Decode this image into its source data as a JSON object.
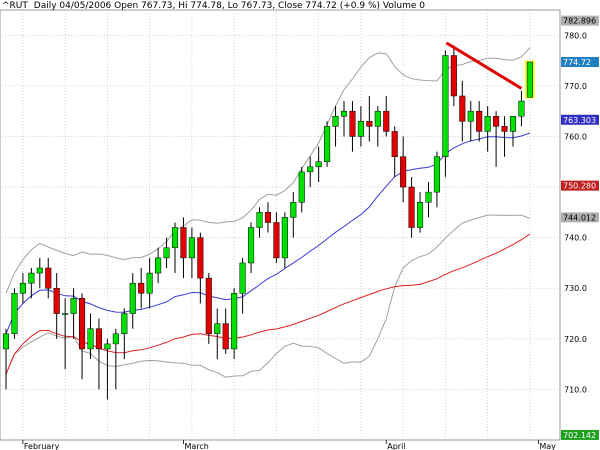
{
  "header": {
    "symbol": "^RUT",
    "info": "Daily 04/05/2006 Open 767.73, Hi 774.78, Lo 767.73, Close 774.72 (+0.9 %) Volume 0"
  },
  "colors": {
    "up": "#00e000",
    "down": "#e00000",
    "ma20": "#3a3ad8",
    "ma50": "#e02020",
    "bands": "#a0a0a0",
    "trendline": "#e00000",
    "highlight": "#ffff00",
    "grid": "#b8b8b8",
    "tag_price": "#2080c0",
    "tag_ma20": "#3030c0",
    "tag_ma50": "#c02020",
    "tag_band": "#b0b0b0",
    "tag_low": "#20a020"
  },
  "chart_data": {
    "type": "candlestick",
    "y_axis": {
      "min": 700,
      "max": 785,
      "ticks": [
        710,
        720,
        730,
        740,
        750,
        760,
        770,
        780
      ],
      "position": "right"
    },
    "x_axis": {
      "labels": [
        {
          "text": "February",
          "index": 2
        },
        {
          "text": "March",
          "index": 21
        },
        {
          "text": "April",
          "index": 45
        },
        {
          "text": "May",
          "index": 63
        }
      ]
    },
    "grid": true,
    "candles": [
      [
        718,
        722,
        710,
        721
      ],
      [
        721,
        730,
        720,
        729
      ],
      [
        729,
        733,
        727,
        731
      ],
      [
        731,
        734,
        728,
        733
      ],
      [
        733,
        736,
        730,
        734
      ],
      [
        734,
        736,
        728,
        730
      ],
      [
        730,
        733,
        720,
        725
      ],
      [
        725,
        728,
        714,
        725
      ],
      [
        725,
        730,
        720,
        728
      ],
      [
        728,
        729,
        712,
        718
      ],
      [
        718,
        725,
        716,
        722
      ],
      [
        722,
        724,
        710,
        718
      ],
      [
        718,
        720,
        708,
        719
      ],
      [
        719,
        722,
        710,
        721
      ],
      [
        721,
        726,
        716,
        725
      ],
      [
        725,
        733,
        722,
        731
      ],
      [
        731,
        734,
        726,
        729
      ],
      [
        729,
        736,
        726,
        733
      ],
      [
        733,
        738,
        731,
        736
      ],
      [
        736,
        740,
        734,
        738
      ],
      [
        738,
        743,
        733,
        742
      ],
      [
        742,
        744,
        732,
        736
      ],
      [
        736,
        742,
        732,
        740
      ],
      [
        740,
        741,
        727,
        732
      ],
      [
        732,
        733,
        719,
        721
      ],
      [
        721,
        726,
        716,
        723
      ],
      [
        723,
        726,
        717,
        718
      ],
      [
        718,
        730,
        716,
        729
      ],
      [
        729,
        736,
        725,
        735
      ],
      [
        735,
        743,
        733,
        742
      ],
      [
        742,
        746,
        740,
        745
      ],
      [
        745,
        747,
        741,
        743
      ],
      [
        743,
        745,
        735,
        736
      ],
      [
        736,
        745,
        734,
        744
      ],
      [
        744,
        749,
        740,
        747
      ],
      [
        747,
        754,
        745,
        753
      ],
      [
        753,
        756,
        750,
        754
      ],
      [
        754,
        758,
        751,
        755
      ],
      [
        755,
        763,
        754,
        762
      ],
      [
        762,
        766,
        758,
        764
      ],
      [
        764,
        767,
        760,
        765
      ],
      [
        765,
        767,
        757,
        760
      ],
      [
        760,
        766,
        758,
        763
      ],
      [
        763,
        768,
        759,
        762
      ],
      [
        762,
        766,
        758,
        765
      ],
      [
        765,
        768,
        760,
        761
      ],
      [
        761,
        762,
        752,
        756
      ],
      [
        756,
        760,
        747,
        750
      ],
      [
        750,
        752,
        740,
        742
      ],
      [
        742,
        749,
        741,
        747
      ],
      [
        747,
        751,
        744,
        749
      ],
      [
        749,
        757,
        746,
        756
      ],
      [
        756,
        777,
        752,
        776
      ],
      [
        776,
        778,
        766,
        768
      ],
      [
        768,
        771,
        759,
        763
      ],
      [
        763,
        767,
        759,
        765
      ],
      [
        765,
        767,
        759,
        761
      ],
      [
        761,
        766,
        757,
        764
      ],
      [
        764,
        765,
        754,
        762
      ],
      [
        762,
        764,
        756,
        761
      ],
      [
        761,
        764,
        758,
        764
      ],
      [
        764,
        769,
        762,
        767
      ],
      [
        767.73,
        774.78,
        767.73,
        774.72
      ]
    ],
    "last_close": "774.72",
    "ma20_value": "763.303",
    "ma50_value": "750.280",
    "upper_band_value": "782.896",
    "lower_band_value": "744.012",
    "bottom_value": "702.142"
  }
}
